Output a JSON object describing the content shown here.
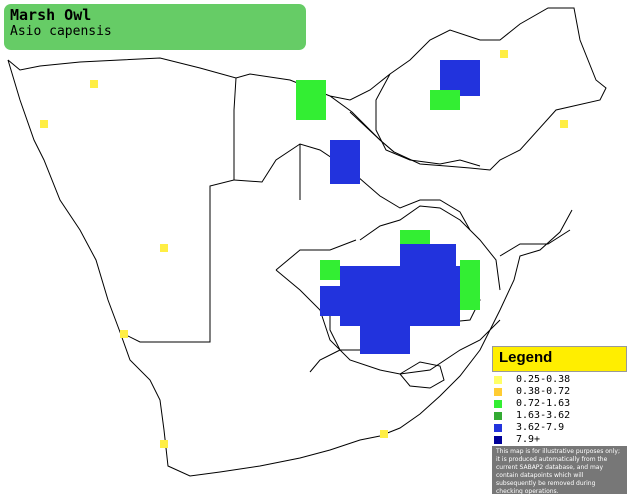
{
  "title": {
    "common_name": "Marsh Owl",
    "scientific_name": "Asio capensis"
  },
  "legend": {
    "heading": "Legend",
    "items": [
      {
        "label": "0.25-0.38",
        "color": "#ffff66"
      },
      {
        "label": "0.38-0.72",
        "color": "#ffcc33"
      },
      {
        "label": "0.72-1.63",
        "color": "#33ee33"
      },
      {
        "label": "1.63-3.62",
        "color": "#33aa33"
      },
      {
        "label": "3.62-7.9",
        "color": "#2233dd"
      },
      {
        "label": "7.9+",
        "color": "#000099"
      }
    ],
    "note": "This map is for illustrative purposes only; it is produced automatically from the current SABAP2 database, and may contain datapoints which will subsequently be removed during checking operations."
  }
}
